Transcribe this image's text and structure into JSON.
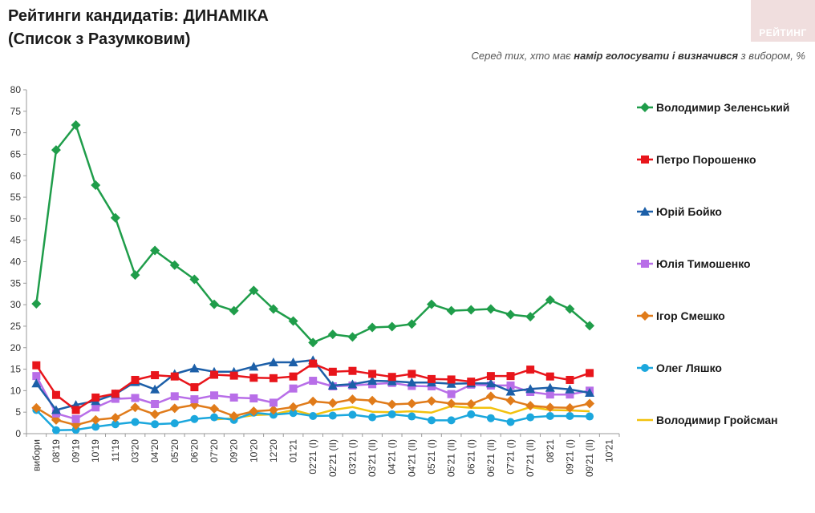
{
  "header": {
    "title_line1": "Рейтинги кандидатів: ДИНАМІКА",
    "title_line2": "(Список з Разумковим)",
    "subtitle_pre": "Серед тих, хто має ",
    "subtitle_bold": "намір голосувати і визначився",
    "subtitle_post": " з вибором, %",
    "logo_text": "РЕЙТИНГ"
  },
  "chart_data": {
    "type": "line",
    "title": "Рейтинги кандидатів: ДИНАМІКА (Список з Разумковим)",
    "ylim": [
      0,
      80
    ],
    "yticks": [
      0,
      5,
      10,
      15,
      20,
      25,
      30,
      35,
      40,
      45,
      50,
      55,
      60,
      65,
      70,
      75,
      80
    ],
    "grid": false,
    "legend_position": "right",
    "categories": [
      "вибори",
      "08'19",
      "09'19",
      "10'19",
      "11'19",
      "03'20",
      "04'20",
      "05'20",
      "06'20",
      "07'20",
      "09'20",
      "10'20",
      "12'20",
      "01'21",
      "02'21 (I)",
      "02'21 (II)",
      "03'21 (I)",
      "03'21 (II)",
      "04'21 (I)",
      "04'21 (II)",
      "05'21 (I)",
      "05'21 (II)",
      "06'21 (I)",
      "06'21 (II)",
      "07'21 (I)",
      "07'21 (II)",
      "08'21",
      "09'21 (I)",
      "09'21 (II)",
      "10'21"
    ],
    "series": [
      {
        "name": "Володимир Зеленський",
        "color": "#1f9d4a",
        "marker": "diamond",
        "values": [
          30.2,
          66,
          71.8,
          57.8,
          50.2,
          36.9,
          42.6,
          39.2,
          35.9,
          30.1,
          28.6,
          33.3,
          29,
          26.2,
          21.2,
          23.1,
          22.5,
          24.7,
          24.9,
          25.5,
          30.1,
          28.6,
          28.8,
          29,
          27.7,
          27.2,
          31.1,
          29,
          25.1,
          null
        ]
      },
      {
        "name": "Петро Порошенко",
        "color": "#e8151b",
        "marker": "square",
        "values": [
          15.9,
          9,
          5.5,
          8.4,
          9.3,
          12.5,
          13.6,
          13.3,
          10.8,
          13.7,
          13.5,
          13,
          12.9,
          13.3,
          16.3,
          14.4,
          14.6,
          13.9,
          13.2,
          13.9,
          12.7,
          12.6,
          12.1,
          13.4,
          13.4,
          14.9,
          13.3,
          12.5,
          14.1,
          null
        ]
      },
      {
        "name": "Юрій Бойко",
        "color": "#1c5fa8",
        "marker": "triangle",
        "values": [
          11.7,
          5.5,
          6.7,
          7.6,
          9.2,
          12,
          10.3,
          13.9,
          15.2,
          14.4,
          14.4,
          15.6,
          16.6,
          16.6,
          17.1,
          11.2,
          11.5,
          12.3,
          12.2,
          11.9,
          11.9,
          11.6,
          11.7,
          11.7,
          9.8,
          10.4,
          10.7,
          10.3,
          9.5,
          null
        ]
      },
      {
        "name": "Юлія Тимошенко",
        "color": "#b86ee8",
        "marker": "square",
        "values": [
          13.4,
          4.7,
          3.4,
          6.1,
          8.1,
          8.3,
          6.9,
          8.7,
          8,
          8.9,
          8.4,
          8.2,
          7.2,
          10.5,
          12.3,
          11,
          11.2,
          11.5,
          11.8,
          11.1,
          11,
          9.2,
          11.4,
          11.2,
          11.2,
          9.7,
          9.1,
          9.1,
          10,
          null
        ]
      },
      {
        "name": "Ігор Смешко",
        "color": "#e07b1a",
        "marker": "diamond",
        "values": [
          6,
          3.2,
          2,
          3.2,
          3.7,
          6.1,
          4.5,
          5.9,
          6.7,
          5.8,
          4.1,
          5.2,
          5.5,
          6.2,
          7.5,
          7.1,
          8,
          7.7,
          6.8,
          7,
          7.6,
          7,
          6.9,
          8.7,
          7.7,
          6.5,
          6.1,
          6,
          7,
          null
        ]
      },
      {
        "name": "Олег Ляшко",
        "color": "#1ba7dd",
        "marker": "circle",
        "values": [
          5.5,
          0.8,
          0.9,
          1.6,
          2.2,
          2.7,
          2.2,
          2.4,
          3.4,
          3.8,
          3.2,
          4.9,
          4.4,
          4.8,
          4.1,
          4.2,
          4.4,
          3.8,
          4.5,
          4,
          3.1,
          3.1,
          4.5,
          3.6,
          2.7,
          3.8,
          4.1,
          4.1,
          4,
          null
        ]
      },
      {
        "name": "Володимир Гройсман",
        "color": "#f2c10e",
        "marker": "none",
        "values": [
          null,
          null,
          null,
          null,
          null,
          null,
          null,
          null,
          null,
          3.3,
          3.6,
          4.3,
          4.5,
          5.5,
          4.3,
          5.5,
          6.2,
          5.1,
          5,
          5.2,
          4.9,
          6.4,
          6,
          6,
          4.7,
          6.2,
          5.5,
          5.4,
          5.2,
          null
        ]
      }
    ]
  }
}
